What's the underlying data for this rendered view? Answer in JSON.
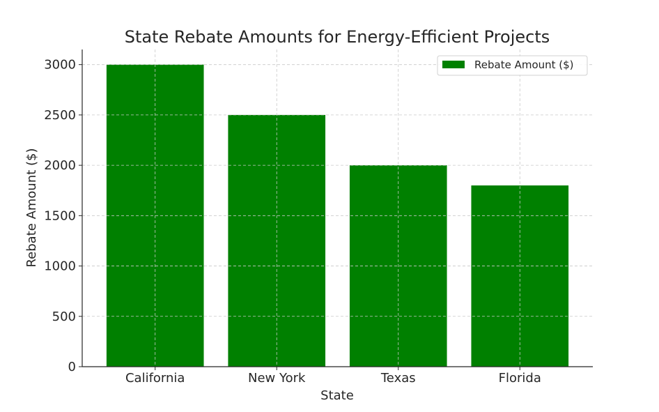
{
  "chart_data": {
    "type": "bar",
    "title": "State Rebate Amounts for Energy-Efficient Projects",
    "xlabel": "State",
    "ylabel": "Rebate Amount ($)",
    "categories": [
      "California",
      "New York",
      "Texas",
      "Florida"
    ],
    "series": [
      {
        "name": "Rebate Amount ($)",
        "values": [
          3000,
          2500,
          2000,
          1800
        ],
        "color": "#008000"
      }
    ],
    "ylim": [
      0,
      3150
    ],
    "yticks": [
      0,
      500,
      1000,
      1500,
      2000,
      2500,
      3000
    ],
    "grid": true,
    "legend": "top-right"
  }
}
